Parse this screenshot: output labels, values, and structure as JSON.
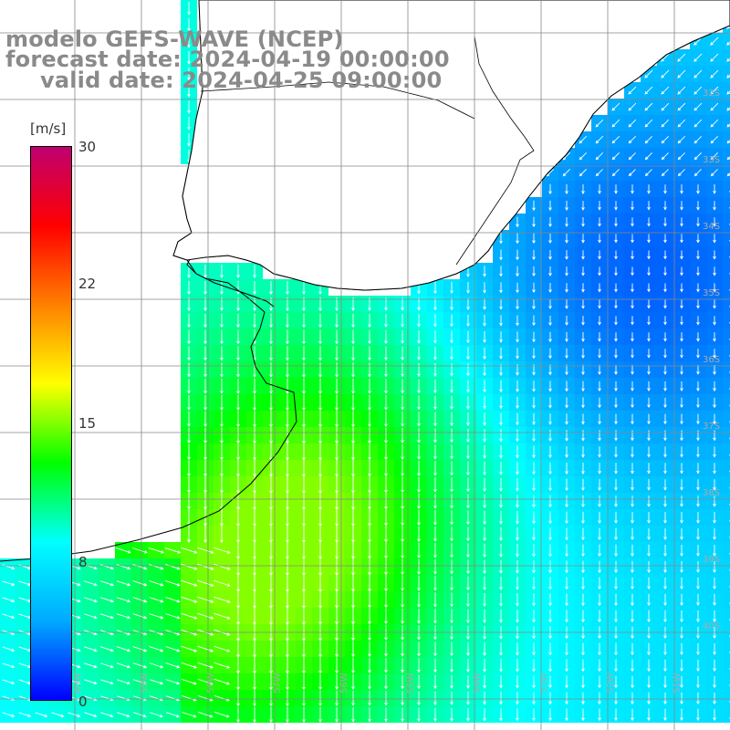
{
  "title": {
    "model": "modelo GEFS-WAVE (NCEP)",
    "forecast": "forecast date: 2024-04-19 00:00:00",
    "valid": "valid date: 2024-04-25 09:00:00"
  },
  "colorbar": {
    "unit": "[m/s]",
    "ticks": [
      "30",
      "22",
      "15",
      "8",
      "0"
    ],
    "tick_values": [
      30,
      22,
      15,
      8,
      0
    ],
    "range": [
      0,
      30
    ],
    "colors": [
      "#0000ff",
      "#00aaff",
      "#00ffff",
      "#00ff00",
      "#ffff00",
      "#ff8000",
      "#ff0000",
      "#c0006f"
    ]
  },
  "map": {
    "variable": "wind speed and direction",
    "lat_labels": [
      "32S",
      "33S",
      "34S",
      "35S",
      "36S",
      "37S",
      "38S",
      "39S",
      "40S"
    ],
    "lon_labels": [
      "60W",
      "59W",
      "58W",
      "57W",
      "56W",
      "55W",
      "54W",
      "53W",
      "52W",
      "51W"
    ],
    "ocean_color": "#1e90ff",
    "land_color": "#ffffff",
    "grid_color": "#888888"
  }
}
